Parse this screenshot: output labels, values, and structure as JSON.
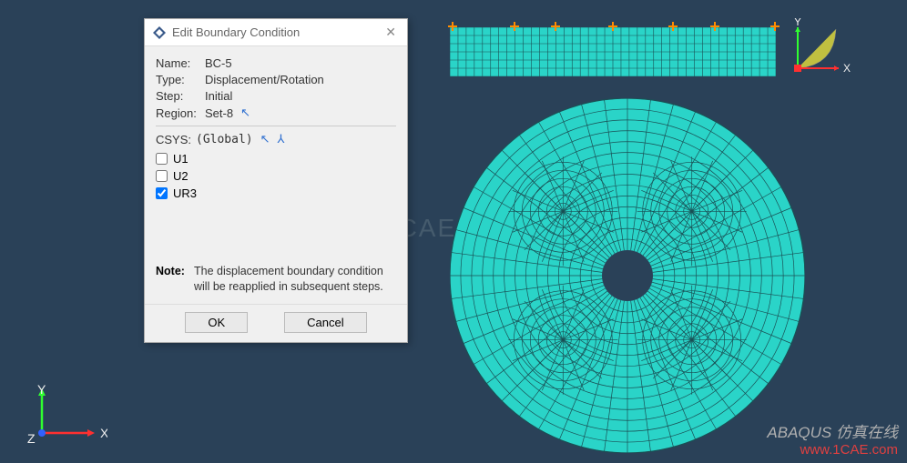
{
  "viewport": {
    "background": "#2a4158",
    "rect_mesh": {
      "fill": "#2ad4c8",
      "stroke": "#1a5055",
      "cols": 40,
      "rows": 6
    },
    "circle_mesh": {
      "fill": "#2ad4c8",
      "stroke": "#1a5055",
      "outer_radius": 195,
      "inner_radius": 28
    },
    "watermark_center": "1CAE",
    "watermark_br_line1": "ABAQUS 仿真在线",
    "watermark_br_line2": "www.1CAE.com"
  },
  "triad": {
    "x_label": "X",
    "y_label": "Y",
    "z_label": "Z",
    "x_color": "#ff3030",
    "y_color": "#30ff30",
    "z_color": "#3060ff"
  },
  "dialog": {
    "title": "Edit Boundary Condition",
    "fields": {
      "name_label": "Name:",
      "name_value": "BC-5",
      "type_label": "Type:",
      "type_value": "Displacement/Rotation",
      "step_label": "Step:",
      "step_value": "Initial",
      "region_label": "Region:",
      "region_value": "Set-8"
    },
    "csys": {
      "label": "CSYS:",
      "value": "(Global)"
    },
    "checks": {
      "u1": {
        "label": "U1",
        "checked": false
      },
      "u2": {
        "label": "U2",
        "checked": false
      },
      "ur3": {
        "label": "UR3",
        "checked": true
      }
    },
    "note_label": "Note:",
    "note_text": "The displacement boundary condition will be reapplied in subsequent steps.",
    "ok_label": "OK",
    "cancel_label": "Cancel"
  }
}
